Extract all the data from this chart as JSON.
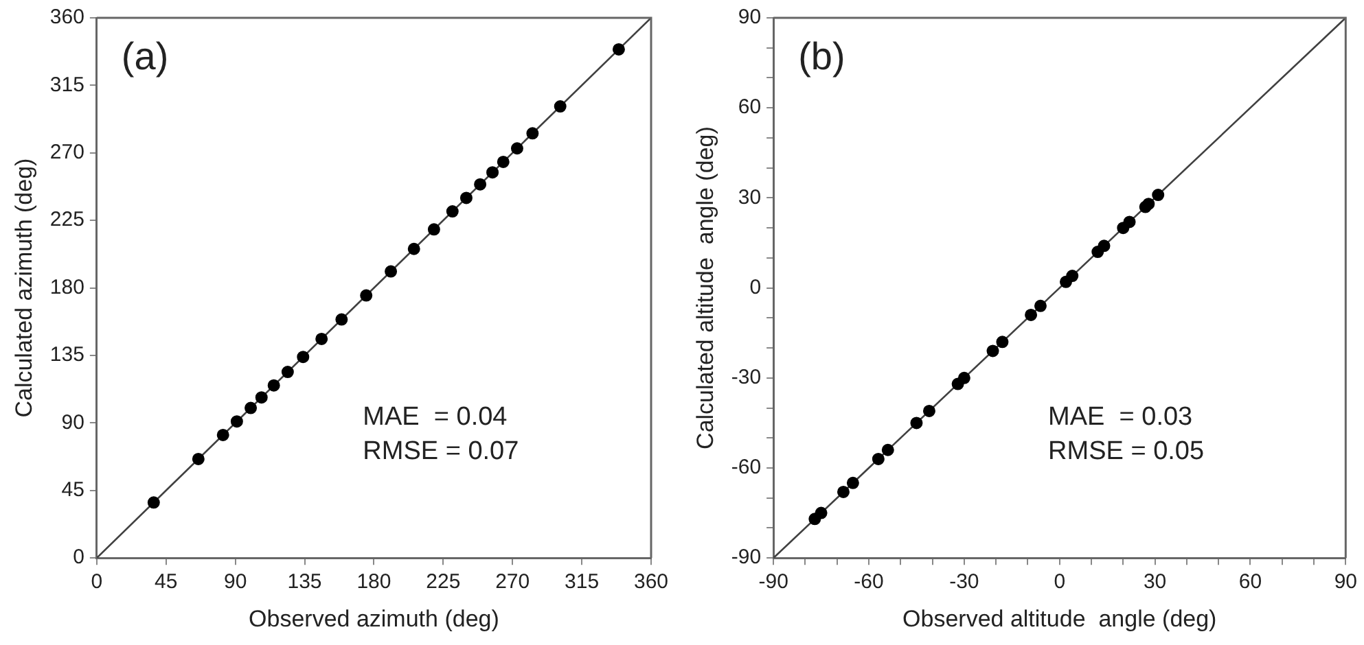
{
  "chart_data": [
    {
      "type": "scatter",
      "xlabel": "Observed azimuth (deg)",
      "ylabel": "Calculated azimuth (deg)",
      "xlim": [
        0,
        360
      ],
      "ylim": [
        0,
        360
      ],
      "xticks": [
        0,
        45,
        90,
        135,
        180,
        225,
        270,
        315,
        360
      ],
      "yticks": [
        0,
        45,
        90,
        135,
        180,
        225,
        270,
        315,
        360
      ],
      "grid": false,
      "legend": false,
      "annotations": [
        "(a)",
        "MAE  = 0.04",
        "RMSE = 0.07"
      ],
      "series": [
        {
          "marker": "circle",
          "color": "#000000",
          "x": [
            37,
            66,
            82,
            91,
            100,
            107,
            115,
            124,
            134,
            146,
            159,
            175,
            191,
            206,
            219,
            231,
            240,
            249,
            257,
            264,
            273,
            283,
            301,
            339
          ],
          "values": [
            37,
            66,
            82,
            91,
            100,
            107,
            115,
            124,
            134,
            146,
            159,
            175,
            191,
            206,
            219,
            231,
            240,
            249,
            257,
            264,
            273,
            283,
            301,
            339
          ]
        },
        {
          "type": "line",
          "marker": "none",
          "color": "#404040",
          "x": [
            0,
            360
          ],
          "values": [
            0,
            360
          ]
        }
      ]
    },
    {
      "type": "scatter",
      "xlabel": "Observed altitude  angle (deg)",
      "ylabel": "Calculated altitude  angle (deg)",
      "xlim": [
        -90,
        90
      ],
      "ylim": [
        -90,
        90
      ],
      "xticks": [
        -90,
        {
          "value": -80,
          "label": null
        },
        {
          "value": -70,
          "label": null
        },
        -60,
        {
          "value": -50,
          "label": null
        },
        {
          "value": -40,
          "label": null
        },
        -30,
        {
          "value": -20,
          "label": null
        },
        {
          "value": -10,
          "label": null
        },
        0,
        {
          "value": 10,
          "label": null
        },
        {
          "value": 20,
          "label": null
        },
        30,
        {
          "value": 40,
          "label": null
        },
        {
          "value": 50,
          "label": null
        },
        60,
        {
          "value": 70,
          "label": null
        },
        {
          "value": 80,
          "label": null
        },
        90
      ],
      "yticks": [
        -90,
        {
          "value": -80,
          "label": null
        },
        {
          "value": -70,
          "label": null
        },
        -60,
        {
          "value": -50,
          "label": null
        },
        {
          "value": -40,
          "label": null
        },
        -30,
        {
          "value": -20,
          "label": null
        },
        {
          "value": -10,
          "label": null
        },
        0,
        {
          "value": 10,
          "label": null
        },
        {
          "value": 20,
          "label": null
        },
        30,
        {
          "value": 40,
          "label": null
        },
        {
          "value": 50,
          "label": null
        },
        60,
        {
          "value": 70,
          "label": null
        },
        {
          "value": 80,
          "label": null
        },
        90
      ],
      "grid": false,
      "legend": false,
      "annotations": [
        "(b)",
        "MAE  = 0.03",
        "RMSE = 0.05"
      ],
      "series": [
        {
          "marker": "circle",
          "color": "#000000",
          "x": [
            -77,
            -75,
            -68,
            -65,
            -57,
            -54,
            -45,
            -41,
            -32,
            -30,
            -21,
            -18,
            -9,
            -6,
            2,
            4,
            12,
            14,
            20,
            22,
            27,
            28,
            31
          ],
          "values": [
            -77,
            -75,
            -68,
            -65,
            -57,
            -54,
            -45,
            -41,
            -32,
            -30,
            -21,
            -18,
            -9,
            -6,
            2,
            4,
            12,
            14,
            20,
            22,
            27,
            28,
            31
          ]
        },
        {
          "type": "line",
          "marker": "none",
          "color": "#404040",
          "x": [
            -90,
            90
          ],
          "values": [
            -90,
            90
          ]
        }
      ]
    }
  ]
}
